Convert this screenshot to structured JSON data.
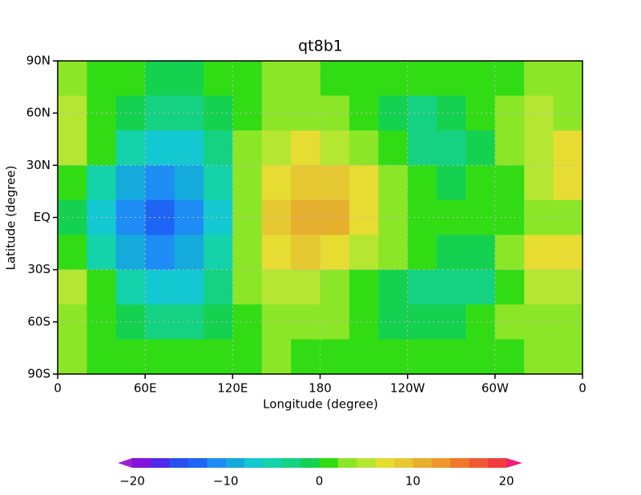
{
  "chart_data": {
    "type": "contour",
    "title": "qt8b1",
    "x_label": "Longitude (degree)",
    "y_label": "Latitude (degree)",
    "x": [
      10,
      30,
      50,
      70,
      90,
      110,
      130,
      150,
      170,
      190,
      210,
      230,
      250,
      270,
      290,
      310,
      330,
      350
    ],
    "y": [
      80,
      60,
      40,
      20,
      0,
      -20,
      -40,
      -60,
      -80
    ],
    "z": [
      [
        2,
        1,
        0,
        -1,
        -1,
        1,
        1,
        2,
        2,
        1,
        1,
        1,
        0,
        0,
        1,
        1,
        2,
        2
      ],
      [
        4,
        1,
        -2,
        -4,
        -4,
        -2,
        1,
        3,
        3,
        2,
        1,
        -1,
        -3,
        -2,
        0,
        3,
        4,
        3
      ],
      [
        5,
        0,
        -6,
        -8,
        -7,
        -4,
        2,
        5,
        6,
        5,
        3,
        0,
        -3,
        -4,
        -2,
        2,
        5,
        7
      ],
      [
        1,
        -5,
        -10,
        -12,
        -10,
        -6,
        2,
        7,
        8,
        8,
        6,
        2,
        0,
        -1,
        0,
        1,
        4,
        6
      ],
      [
        -1,
        -7,
        -12,
        -13,
        -12,
        -7,
        3,
        8,
        10,
        10,
        7,
        3,
        1,
        1,
        1,
        1,
        2,
        2
      ],
      [
        1,
        -5,
        -10,
        -12,
        -10,
        -6,
        2,
        7,
        8,
        7,
        5,
        2,
        0,
        -2,
        -1,
        2,
        6,
        6
      ],
      [
        4,
        0,
        -6,
        -8,
        -7,
        -4,
        2,
        5,
        5,
        3,
        1,
        -1,
        -3,
        -4,
        -3,
        1,
        5,
        4
      ],
      [
        3,
        1,
        -2,
        -4,
        -3,
        -1,
        1,
        3,
        3,
        2,
        1,
        -1,
        -2,
        -2,
        0,
        2,
        3,
        3
      ],
      [
        2,
        1,
        0,
        0,
        0,
        1,
        1,
        2,
        1,
        1,
        1,
        1,
        0,
        0,
        1,
        1,
        2,
        2
      ]
    ],
    "xlim": [
      0,
      360
    ],
    "ylim": [
      -90,
      90
    ],
    "xticks": [
      0,
      {
        "value": 60,
        "label": "60E"
      },
      {
        "value": 120,
        "label": "120E"
      },
      180,
      {
        "value": 240,
        "label": "120W"
      },
      {
        "value": 300,
        "label": "60W"
      },
      {
        "value": 360,
        "label": "0"
      }
    ],
    "yticks": [
      {
        "value": -90,
        "label": "90S"
      },
      {
        "value": -60,
        "label": "60S"
      },
      {
        "value": -30,
        "label": "30S"
      },
      {
        "value": 0,
        "label": "EQ"
      },
      {
        "value": 30,
        "label": "30N"
      },
      {
        "value": 60,
        "label": "60N"
      },
      {
        "value": 90,
        "label": "90N"
      }
    ],
    "grid": true,
    "levels": [
      -20,
      -18,
      -16,
      -14,
      -12,
      -10,
      -8,
      -6,
      -4,
      -2,
      0,
      2,
      4,
      6,
      8,
      10,
      12,
      14,
      16,
      18,
      20
    ],
    "colors": [
      "#a01ed2",
      "#8214dc",
      "#5028eb",
      "#2850f0",
      "#1e64f5",
      "#1e8cf5",
      "#14aadc",
      "#14c8d2",
      "#14d2aa",
      "#14d282",
      "#14d250",
      "#32dc14",
      "#8ce628",
      "#b4e632",
      "#e6dc32",
      "#e6c832",
      "#e6af2d",
      "#f0962d",
      "#f07828",
      "#f05a32",
      "#f03c3c",
      "#f01e78"
    ],
    "colorbar_ticks": [
      {
        "value": -20,
        "label": "−20"
      },
      {
        "value": -10,
        "label": "−10"
      },
      0,
      10,
      20
    ]
  }
}
